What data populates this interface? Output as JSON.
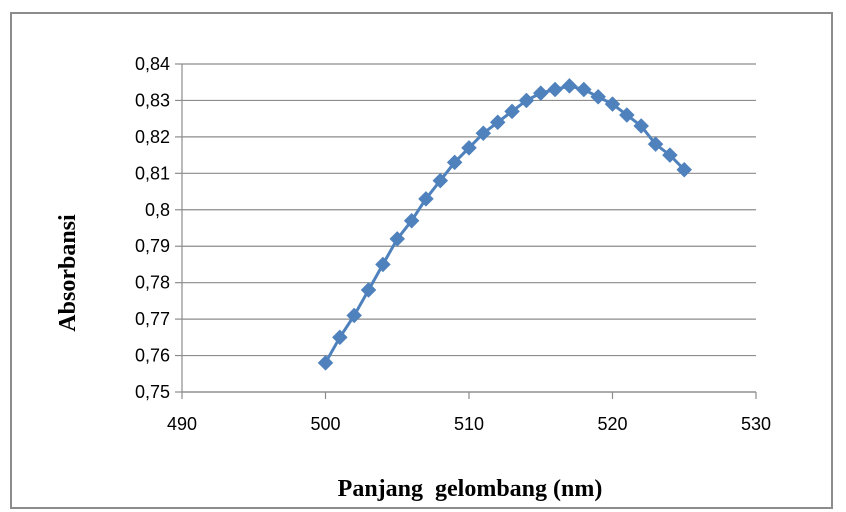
{
  "chart_data": {
    "type": "scatter",
    "xlabel": "Panjang  gelombang (nm)",
    "ylabel": "Absorbansi",
    "xlim": [
      490,
      530
    ],
    "ylim": [
      0.75,
      0.84
    ],
    "x_ticks": [
      "490",
      "500",
      "510",
      "520",
      "530"
    ],
    "y_ticks": [
      "0,75",
      "0,76",
      "0,77",
      "0,78",
      "0,79",
      "0,8",
      "0,81",
      "0,82",
      "0,83",
      "0,84"
    ],
    "grid": "horizontal",
    "marker": "diamond",
    "connected": true,
    "series_color": "#4f81bd",
    "series": [
      {
        "x": [
          500,
          501,
          502,
          503,
          504,
          505,
          506,
          507,
          508,
          509,
          510,
          511,
          512,
          513,
          514,
          515,
          516,
          517,
          518,
          519,
          520,
          521,
          522,
          523,
          524,
          525
        ],
        "y": [
          0.758,
          0.765,
          0.771,
          0.778,
          0.785,
          0.792,
          0.797,
          0.803,
          0.808,
          0.813,
          0.817,
          0.821,
          0.824,
          0.827,
          0.83,
          0.832,
          0.833,
          0.834,
          0.833,
          0.831,
          0.829,
          0.826,
          0.823,
          0.818,
          0.815,
          0.811
        ]
      }
    ]
  }
}
